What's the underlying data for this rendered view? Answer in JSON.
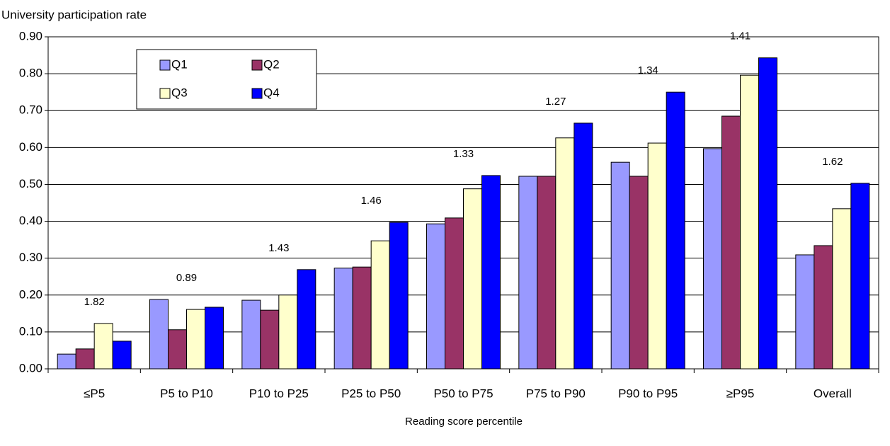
{
  "chart_data": {
    "type": "bar",
    "title": "University participation rate",
    "x_label": "Reading score percentile",
    "categories": [
      "≤P5",
      "P5 to P10",
      "P10 to P25",
      "P25 to P50",
      "P50 to P75",
      "P75 to P90",
      "P90 to P95",
      "≥P95",
      "Overall"
    ],
    "series": [
      {
        "name": "Q1",
        "color": "#9999ff",
        "values": [
          0.04,
          0.188,
          0.186,
          0.273,
          0.393,
          0.522,
          0.56,
          0.597,
          0.309
        ]
      },
      {
        "name": "Q2",
        "color": "#993366",
        "values": [
          0.054,
          0.106,
          0.159,
          0.276,
          0.409,
          0.522,
          0.522,
          0.685,
          0.334
        ]
      },
      {
        "name": "Q3",
        "color": "#ffffcc",
        "values": [
          0.123,
          0.161,
          0.2,
          0.347,
          0.488,
          0.626,
          0.612,
          0.796,
          0.434
        ]
      },
      {
        "name": "Q4",
        "color": "#0000ff",
        "values": [
          0.075,
          0.167,
          0.269,
          0.397,
          0.524,
          0.666,
          0.75,
          0.843,
          0.503
        ]
      }
    ],
    "ratio_labels": [
      "1.82",
      "0.89",
      "1.43",
      "1.46",
      "1.33",
      "1.27",
      "1.34",
      "1.41",
      "1.62"
    ],
    "ylim": [
      0,
      0.9
    ],
    "yticks": [
      {
        "value": 0,
        "label": "0.00"
      },
      {
        "value": 0.1,
        "label": "0.10"
      },
      {
        "value": 0.2,
        "label": "0.20"
      },
      {
        "value": 0.3,
        "label": "0.30"
      },
      {
        "value": 0.4,
        "label": "0.40"
      },
      {
        "value": 0.5,
        "label": "0.50"
      },
      {
        "value": 0.6,
        "label": "0.60"
      },
      {
        "value": 0.7,
        "label": "0.70"
      },
      {
        "value": 0.8,
        "label": "0.80"
      },
      {
        "value": 0.9,
        "label": "0.90"
      }
    ],
    "grid": true
  }
}
